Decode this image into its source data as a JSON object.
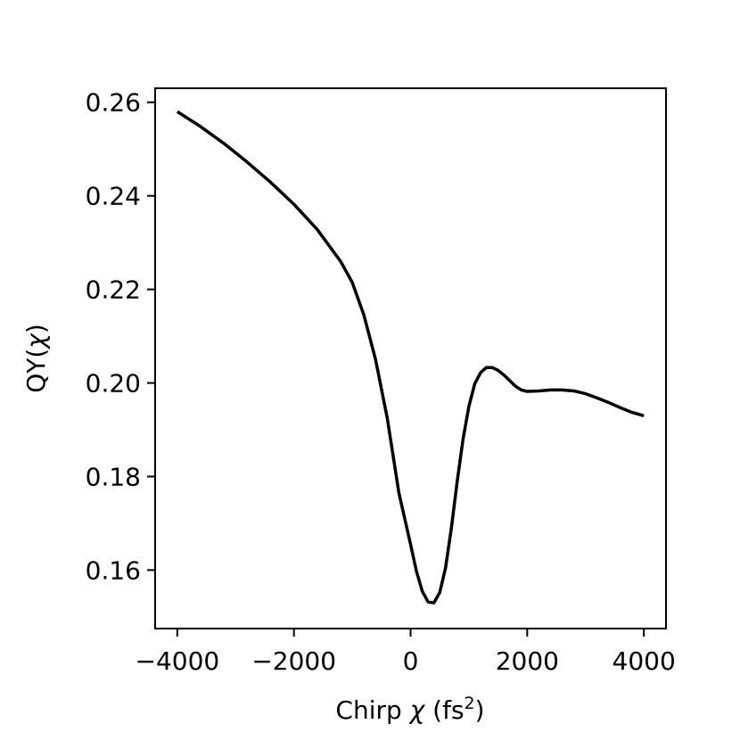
{
  "chart_data": {
    "type": "line",
    "title": "",
    "xlabel": {
      "prefix": "Chirp ",
      "symbol": "χ",
      "unit_open": " (fs",
      "unit_sup": "2",
      "unit_close": ")"
    },
    "ylabel": {
      "prefix": "QY(",
      "symbol": "χ",
      "suffix": ")"
    },
    "xlim": [
      -4380,
      4380
    ],
    "ylim": [
      0.1475,
      0.263
    ],
    "xticks": [
      -4000,
      -2000,
      0,
      2000,
      4000
    ],
    "xtick_labels": [
      "−4000",
      "−2000",
      "0",
      "2000",
      "4000"
    ],
    "yticks": [
      0.16,
      0.18,
      0.2,
      0.22,
      0.24,
      0.26
    ],
    "ytick_labels": [
      "0.16",
      "0.18",
      "0.20",
      "0.22",
      "0.24",
      "0.26"
    ],
    "grid": false,
    "series": [
      {
        "color": "#000000",
        "x": [
          -4000,
          -3600,
          -3200,
          -2800,
          -2400,
          -2000,
          -1600,
          -1200,
          -1000,
          -800,
          -600,
          -400,
          -200,
          0,
          100,
          200,
          300,
          400,
          500,
          600,
          700,
          800,
          900,
          1000,
          1100,
          1200,
          1300,
          1400,
          1500,
          1600,
          1700,
          1800,
          1900,
          2000,
          2200,
          2400,
          2600,
          2800,
          3000,
          3200,
          3400,
          3600,
          3800,
          4000
        ],
        "y": [
          0.258,
          0.2548,
          0.2512,
          0.2472,
          0.2429,
          0.2382,
          0.2328,
          0.226,
          0.2215,
          0.2145,
          0.205,
          0.1925,
          0.1765,
          0.1655,
          0.1598,
          0.1555,
          0.1532,
          0.153,
          0.1552,
          0.1605,
          0.169,
          0.179,
          0.188,
          0.195,
          0.1998,
          0.2022,
          0.2033,
          0.2033,
          0.2027,
          0.2017,
          0.2005,
          0.1993,
          0.1985,
          0.1982,
          0.1983,
          0.1985,
          0.1985,
          0.1983,
          0.1977,
          0.1968,
          0.1958,
          0.1947,
          0.1937,
          0.193
        ]
      }
    ]
  }
}
